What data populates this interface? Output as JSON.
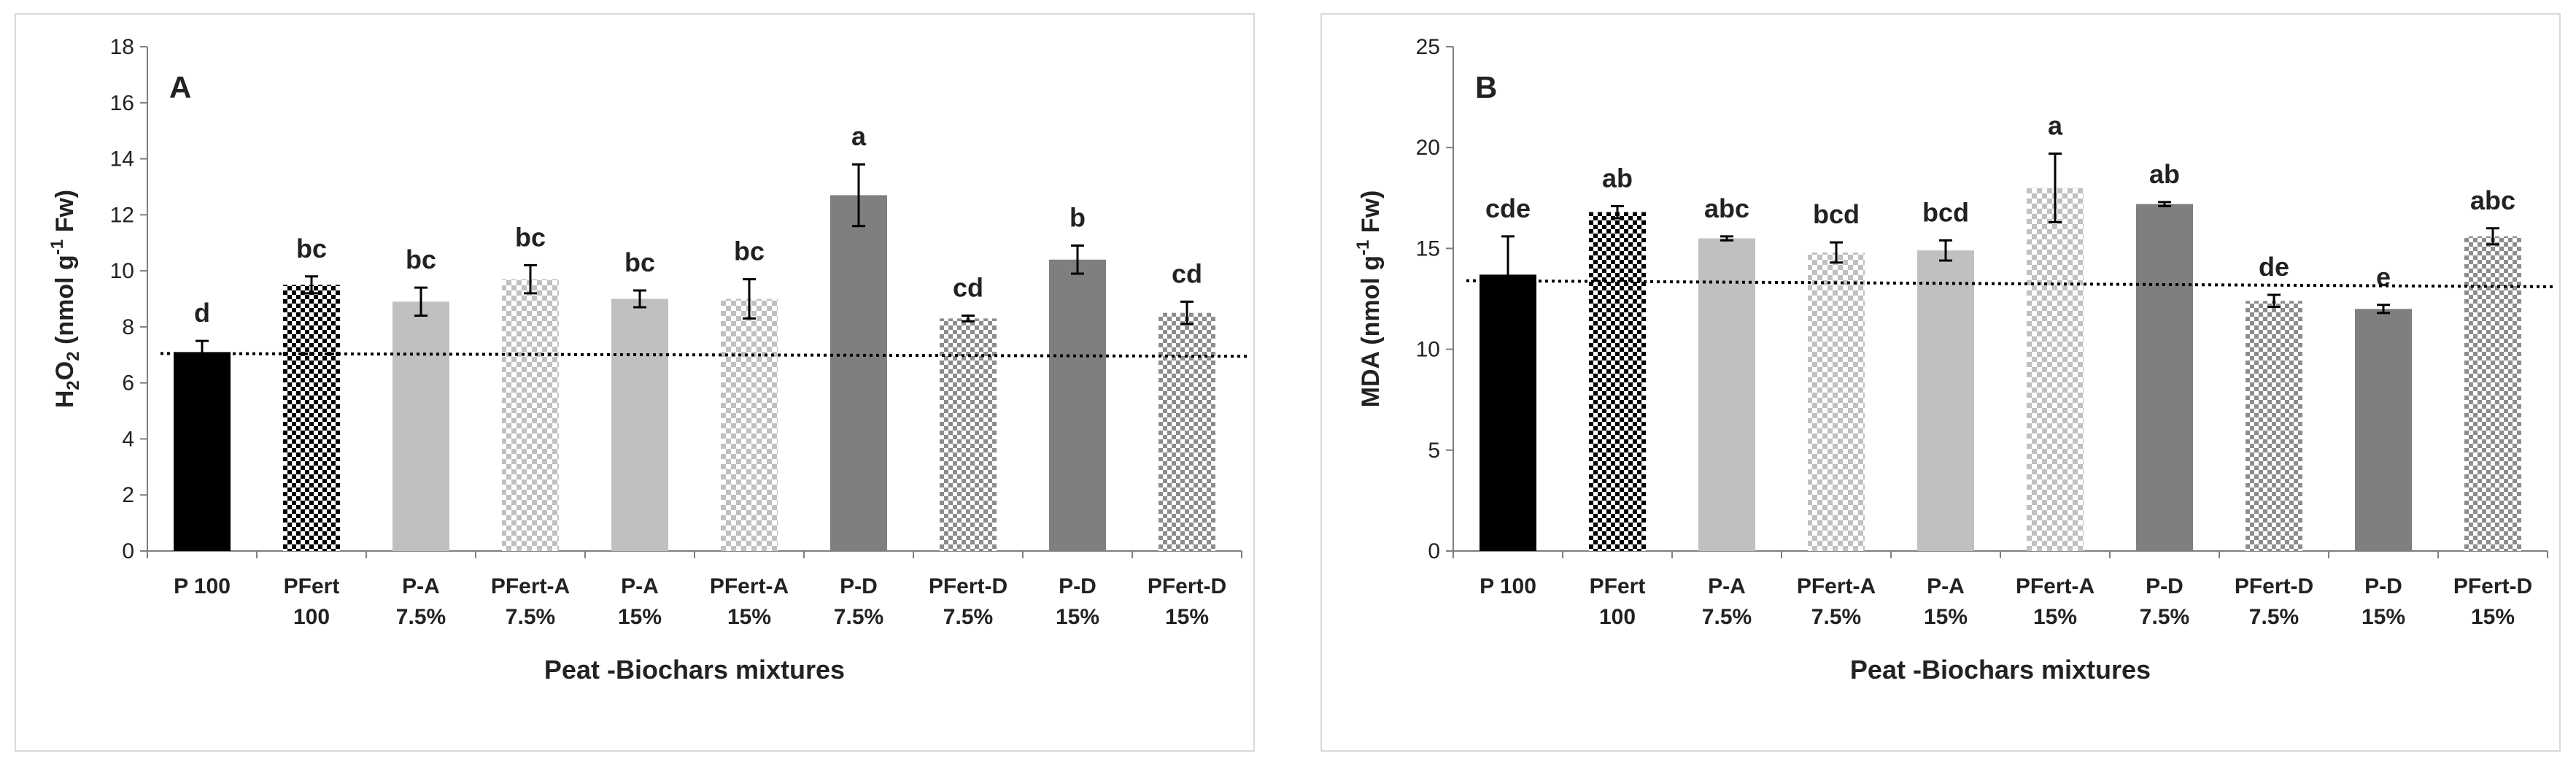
{
  "chart_data": [
    {
      "type": "bar",
      "panel_label": "A",
      "ylabel_parts": [
        {
          "text": "H",
          "pos": "n"
        },
        {
          "text": "2",
          "pos": "sub"
        },
        {
          "text": "O",
          "pos": "n"
        },
        {
          "text": "2",
          "pos": "sub"
        },
        {
          "text": " (nmol g",
          "pos": "n"
        },
        {
          "text": "-1",
          "pos": "sup"
        },
        {
          "text": " Fw)",
          "pos": "n"
        }
      ],
      "xlabel": "Peat -Biochars mixtures",
      "ylim": [
        0,
        18
      ],
      "yticks": [
        0,
        2,
        4,
        6,
        8,
        10,
        12,
        14,
        16,
        18
      ],
      "categories": [
        [
          "P 100",
          ""
        ],
        [
          "PFert",
          "100"
        ],
        [
          "P-A",
          "7.5%"
        ],
        [
          "PFert-A",
          "7.5%"
        ],
        [
          "P-A",
          "15%"
        ],
        [
          "PFert-A",
          "15%"
        ],
        [
          "P-D",
          "7.5%"
        ],
        [
          "PFert-D",
          "7.5%"
        ],
        [
          "P-D",
          "15%"
        ],
        [
          "PFert-D",
          "15%"
        ]
      ],
      "values": [
        7.1,
        9.5,
        8.9,
        9.7,
        9.0,
        9.0,
        12.7,
        8.3,
        10.4,
        8.5
      ],
      "errors": [
        0.4,
        0.3,
        0.5,
        0.5,
        0.3,
        0.7,
        1.1,
        0.1,
        0.5,
        0.4
      ],
      "letters": [
        "d",
        "bc",
        "bc",
        "bc",
        "bc",
        "bc",
        "a",
        "cd",
        "b",
        "cd"
      ],
      "fills": [
        "solid-black",
        "check-black",
        "solid-light",
        "check-light",
        "solid-light",
        "check-light",
        "solid-dark",
        "check-mid",
        "solid-dark",
        "check-mid"
      ],
      "reference_line": [
        7.05,
        6.95
      ]
    },
    {
      "type": "bar",
      "panel_label": "B",
      "ylabel_parts": [
        {
          "text": "MDA (nmol g",
          "pos": "n"
        },
        {
          "text": "-1",
          "pos": "sup"
        },
        {
          "text": " Fw)",
          "pos": "n"
        }
      ],
      "xlabel": "Peat -Biochars mixtures",
      "ylim": [
        0,
        25
      ],
      "yticks": [
        0,
        5,
        10,
        15,
        20,
        25
      ],
      "categories": [
        [
          "P 100",
          ""
        ],
        [
          "PFert",
          "100"
        ],
        [
          "P-A",
          "7.5%"
        ],
        [
          "PFert-A",
          "7.5%"
        ],
        [
          "P-A",
          "15%"
        ],
        [
          "PFert-A",
          "15%"
        ],
        [
          "P-D",
          "7.5%"
        ],
        [
          "PFert-D",
          "7.5%"
        ],
        [
          "P-D",
          "15%"
        ],
        [
          "PFert-D",
          "15%"
        ]
      ],
      "values": [
        13.7,
        16.8,
        15.5,
        14.8,
        14.9,
        18.0,
        17.2,
        12.4,
        12.0,
        15.6
      ],
      "errors": [
        1.9,
        0.3,
        0.1,
        0.5,
        0.5,
        1.7,
        0.1,
        0.3,
        0.2,
        0.4
      ],
      "letters": [
        "cde",
        "ab",
        "abc",
        "bcd",
        "bcd",
        "a",
        "ab",
        "de",
        "e",
        "abc"
      ],
      "fills": [
        "solid-black",
        "check-black",
        "solid-light",
        "check-light",
        "solid-light",
        "check-light",
        "solid-dark",
        "check-mid",
        "solid-dark",
        "check-mid"
      ],
      "reference_line": [
        13.4,
        13.1
      ]
    }
  ],
  "colors": {
    "black": "#000000",
    "light": "#c0c0c0",
    "dark": "#7f7f7f",
    "mid": "#8c8c8c",
    "axis": "#7f7f7f",
    "text": "#222222"
  }
}
